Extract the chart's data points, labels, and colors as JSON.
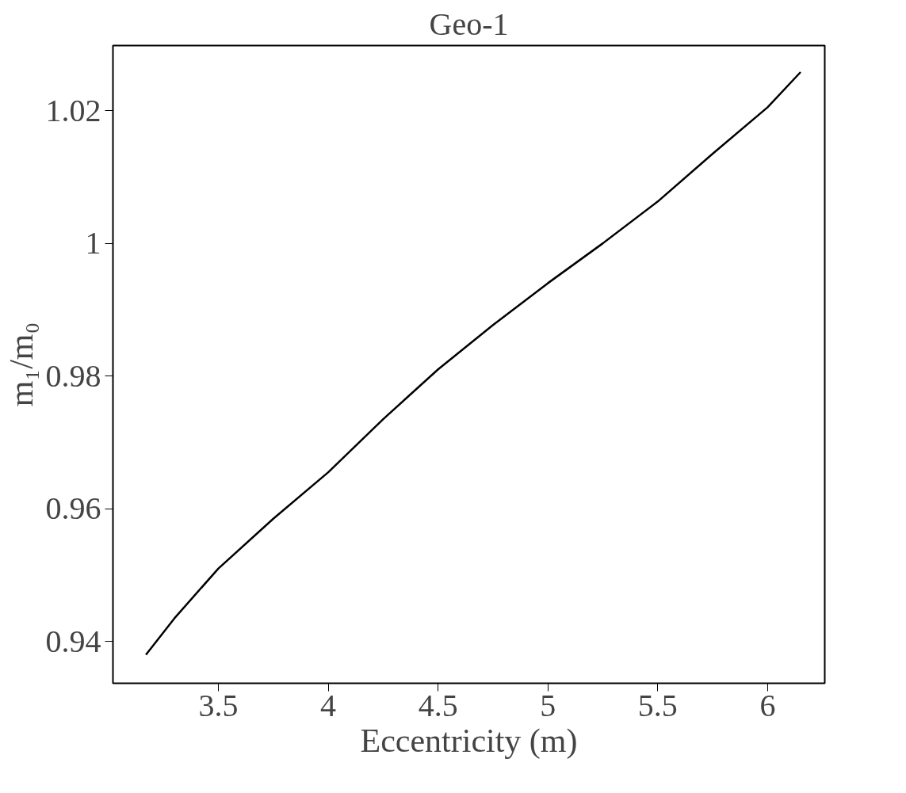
{
  "chart_data": {
    "type": "line",
    "title": "Geo-1",
    "xlabel": "Eccentricity (m)",
    "ylabel": "m₁/m₀",
    "x": [
      3.17,
      3.3,
      3.5,
      3.75,
      4,
      4.25,
      4.5,
      4.75,
      5,
      5.25,
      5.5,
      5.75,
      6,
      6.15
    ],
    "series": [
      {
        "color": "#000000",
        "values": [
          0.938,
          0.9435,
          0.951,
          0.9585,
          0.9655,
          0.9735,
          0.981,
          0.9877,
          0.994,
          1.0,
          1.0063,
          1.0135,
          1.0205,
          1.0258
        ]
      }
    ],
    "xlim": [
      3.02,
      6.26
    ],
    "ylim": [
      0.9337,
      1.0298
    ],
    "xticks": [
      3.5,
      4,
      4.5,
      5,
      5.5,
      6
    ],
    "yticks": [
      0.94,
      0.96,
      0.98,
      1,
      1.02
    ],
    "grid": false,
    "marker": "none",
    "line_style": "solid"
  }
}
